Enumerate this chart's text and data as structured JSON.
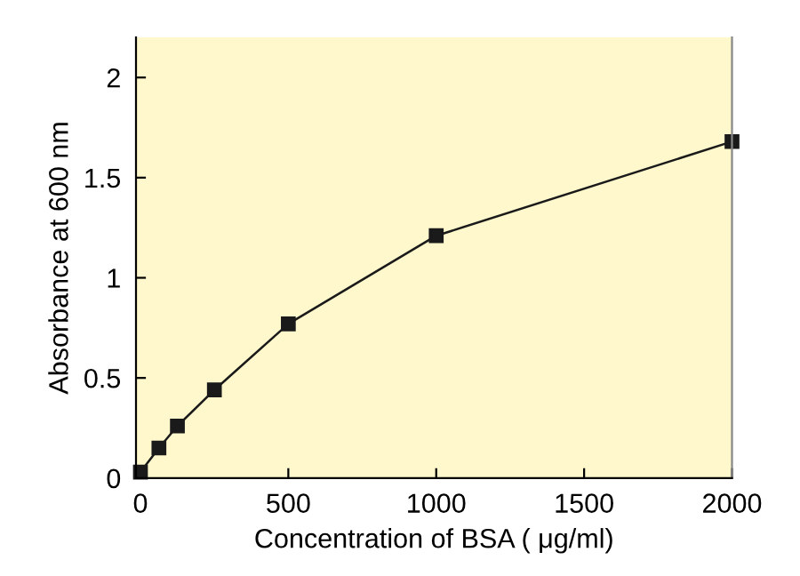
{
  "chart_data": {
    "type": "line",
    "xlabel": "Concentration of BSA ( μg/ml)",
    "ylabel": "Absorbance at 600 nm",
    "x": [
      0,
      62.5,
      125,
      250,
      500,
      1000,
      2000
    ],
    "series": [
      {
        "color": "#1a1a1a",
        "values": [
          0.03,
          0.15,
          0.26,
          0.44,
          0.77,
          1.21,
          1.68
        ]
      }
    ],
    "marker": "square",
    "line_style": "solid",
    "grid": false,
    "legend": false,
    "xlim": [
      -15,
      2000
    ],
    "ylim": [
      0,
      2.2
    ],
    "xticks": [
      0,
      500,
      1000,
      1500,
      2000
    ],
    "yticks": [
      0,
      0.5,
      1,
      1.5,
      2
    ]
  }
}
